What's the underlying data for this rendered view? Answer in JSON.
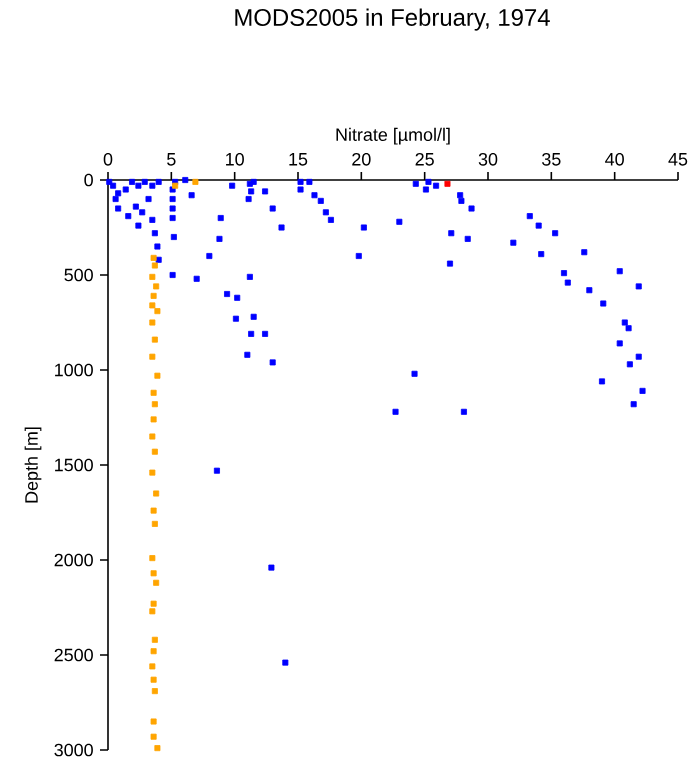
{
  "chart_data": {
    "type": "scatter",
    "title": "MODS2005 in February, 1974",
    "xlabel": "Nitrate [µmol/l]",
    "ylabel": "Depth [m]",
    "xlim": [
      0,
      45
    ],
    "xticks": [
      0,
      5,
      10,
      15,
      20,
      25,
      30,
      35,
      40,
      45
    ],
    "ylim": [
      3000,
      0
    ],
    "yticks": [
      0,
      500,
      1000,
      1500,
      2000,
      2500,
      3000
    ],
    "grid": false,
    "marker": "square",
    "series": [
      {
        "color": "#0000ff",
        "x": [
          0.1,
          0.4,
          0.8,
          1.4,
          1.9,
          2.4,
          2.9,
          3.5,
          4.0,
          0.6,
          1.6,
          0.8,
          2.2,
          2.4,
          2.7,
          3.2,
          3.5,
          3.7,
          3.9,
          4.0,
          5.1,
          5.3,
          6.1,
          6.6,
          5.1,
          5.1,
          5.1,
          5.2,
          5.1,
          7.0,
          8.9,
          8.8,
          8.0,
          9.8,
          11.2,
          11.3,
          11.1,
          11.5,
          12.4,
          13.0,
          13.7,
          15.2,
          15.2,
          15.9,
          16.3,
          16.8,
          17.2,
          17.6,
          20.2,
          19.8,
          23.0,
          11.2,
          9.4,
          10.2,
          10.1,
          11.5,
          11.3,
          12.4,
          11.0,
          13.0,
          24.3,
          25.3,
          25.1,
          25.9,
          27.8,
          27.9,
          28.7,
          27.1,
          28.4,
          27.0,
          33.3,
          34.0,
          35.3,
          32.0,
          34.2,
          37.6,
          36.0,
          36.3,
          38.0,
          39.1,
          40.4,
          41.9,
          40.8,
          41.1,
          40.4,
          41.9,
          41.2,
          39.0,
          42.2,
          41.5,
          24.2,
          22.7,
          28.1,
          8.6,
          12.9,
          14.0
        ],
        "values": [
          10,
          30,
          70,
          50,
          10,
          30,
          10,
          30,
          10,
          100,
          190,
          150,
          140,
          240,
          170,
          100,
          210,
          280,
          350,
          420,
          50,
          10,
          0,
          80,
          100,
          150,
          200,
          300,
          500,
          520,
          200,
          310,
          400,
          30,
          20,
          60,
          100,
          10,
          60,
          150,
          250,
          10,
          50,
          10,
          80,
          110,
          170,
          210,
          250,
          400,
          220,
          510,
          600,
          620,
          730,
          720,
          810,
          810,
          920,
          960,
          20,
          10,
          50,
          30,
          80,
          110,
          150,
          280,
          310,
          440,
          190,
          240,
          280,
          330,
          390,
          380,
          490,
          540,
          580,
          650,
          480,
          560,
          750,
          780,
          860,
          930,
          970,
          1060,
          1110,
          1180,
          1020,
          1220,
          1220,
          1530,
          2040,
          2540
        ]
      },
      {
        "color": "#ffa500",
        "x": [
          5.3,
          6.9,
          3.6,
          3.7,
          3.5,
          3.8,
          3.6,
          3.5,
          3.9,
          3.5,
          3.7,
          3.5,
          3.9,
          3.6,
          3.7,
          3.6,
          3.5,
          3.7,
          3.5,
          3.8,
          3.6,
          3.7,
          3.5,
          3.6,
          3.8,
          3.6,
          3.5,
          3.7,
          3.6,
          3.5,
          3.6,
          3.7,
          3.6,
          3.6,
          3.9
        ],
        "values": [
          30,
          10,
          410,
          450,
          510,
          560,
          610,
          660,
          690,
          750,
          840,
          930,
          1030,
          1120,
          1180,
          1260,
          1350,
          1430,
          1540,
          1650,
          1740,
          1810,
          1990,
          2070,
          2120,
          2230,
          2270,
          2420,
          2480,
          2560,
          2630,
          2690,
          2850,
          2930,
          2990
        ]
      },
      {
        "color": "#ff0000",
        "x": [
          26.8
        ],
        "values": [
          20
        ]
      }
    ]
  }
}
